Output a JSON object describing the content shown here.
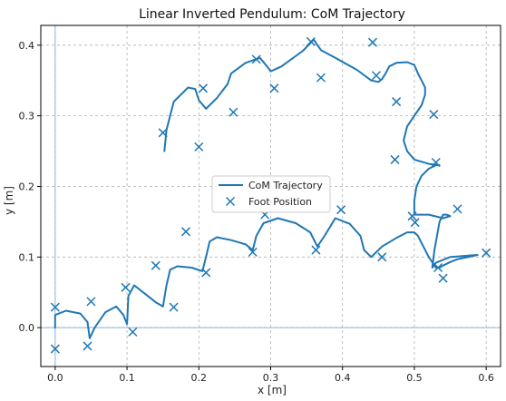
{
  "chart_data": {
    "type": "line",
    "title": "Linear Inverted Pendulum: CoM Trajectory",
    "xlabel": "x [m]",
    "ylabel": "y [m]",
    "xlim": [
      -0.02,
      0.62
    ],
    "ylim": [
      -0.055,
      0.428
    ],
    "xticks": [
      0.0,
      0.1,
      0.2,
      0.3,
      0.4,
      0.5,
      0.6
    ],
    "yticks": [
      0.0,
      0.1,
      0.2,
      0.3,
      0.4
    ],
    "tick_format_decimals": 1,
    "grid": true,
    "legend_position": "center",
    "reference_lines": {
      "x": 0.0,
      "y": 0.0
    },
    "colors": {
      "line": "#1f77b4",
      "marker": "#1f77b4",
      "grid": "#b0b0b0",
      "reference": "#8db6d8"
    },
    "series": [
      {
        "name": "CoM Trajectory",
        "kind": "line",
        "x": [
          0.0,
          0.0,
          0.015,
          0.035,
          0.045,
          0.048,
          0.055,
          0.07,
          0.085,
          0.095,
          0.1,
          0.102,
          0.11,
          0.125,
          0.14,
          0.15,
          0.155,
          0.16,
          0.17,
          0.19,
          0.205,
          0.21,
          0.215,
          0.225,
          0.245,
          0.265,
          0.275,
          0.28,
          0.29,
          0.31,
          0.335,
          0.355,
          0.365,
          0.375,
          0.39,
          0.41,
          0.425,
          0.43,
          0.44,
          0.455,
          0.475,
          0.49,
          0.5,
          0.505,
          0.51,
          0.52,
          0.53,
          0.535,
          0.54,
          0.55,
          0.56,
          0.575,
          0.588,
          0.588,
          0.55,
          0.53,
          0.525,
          0.528,
          0.535,
          0.54,
          0.545,
          0.55,
          0.54,
          0.52,
          0.5,
          0.5,
          0.503,
          0.51,
          0.52,
          0.53,
          0.535,
          0.535,
          0.52,
          0.5,
          0.49,
          0.485,
          0.49,
          0.5,
          0.51,
          0.515,
          0.515,
          0.51,
          0.505,
          0.5,
          0.49,
          0.475,
          0.465,
          0.46,
          0.455,
          0.45,
          0.44,
          0.42,
          0.39,
          0.37,
          0.365,
          0.36,
          0.345,
          0.315,
          0.3,
          0.295,
          0.285,
          0.265,
          0.245,
          0.24,
          0.225,
          0.21,
          0.2,
          0.195,
          0.185,
          0.165,
          0.155,
          0.152
        ],
        "y": [
          0.0,
          0.018,
          0.024,
          0.02,
          0.008,
          -0.015,
          0.0,
          0.022,
          0.03,
          0.018,
          0.005,
          0.045,
          0.06,
          0.048,
          0.036,
          0.03,
          0.06,
          0.082,
          0.087,
          0.085,
          0.08,
          0.1,
          0.122,
          0.128,
          0.124,
          0.118,
          0.11,
          0.13,
          0.148,
          0.155,
          0.148,
          0.135,
          0.115,
          0.13,
          0.155,
          0.147,
          0.13,
          0.11,
          0.1,
          0.115,
          0.127,
          0.135,
          0.135,
          0.13,
          0.12,
          0.1,
          0.085,
          0.085,
          0.088,
          0.093,
          0.097,
          0.1,
          0.103,
          0.103,
          0.1,
          0.092,
          0.085,
          0.11,
          0.15,
          0.16,
          0.16,
          0.158,
          0.155,
          0.16,
          0.16,
          0.18,
          0.2,
          0.215,
          0.225,
          0.23,
          0.23,
          0.23,
          0.232,
          0.238,
          0.25,
          0.265,
          0.285,
          0.3,
          0.315,
          0.33,
          0.34,
          0.35,
          0.36,
          0.372,
          0.376,
          0.375,
          0.37,
          0.36,
          0.352,
          0.348,
          0.35,
          0.365,
          0.382,
          0.393,
          0.4,
          0.408,
          0.392,
          0.37,
          0.363,
          0.37,
          0.382,
          0.375,
          0.36,
          0.345,
          0.325,
          0.31,
          0.322,
          0.338,
          0.34,
          0.32,
          0.28,
          0.25
        ]
      },
      {
        "name": "Foot Position",
        "kind": "scatter",
        "marker": "x",
        "x": [
          0.0,
          0.0,
          0.045,
          0.05,
          0.098,
          0.108,
          0.14,
          0.165,
          0.182,
          0.21,
          0.275,
          0.292,
          0.363,
          0.398,
          0.455,
          0.497,
          0.501,
          0.533,
          0.54,
          0.56,
          0.6,
          0.53,
          0.527,
          0.473,
          0.475,
          0.447,
          0.442,
          0.37,
          0.356,
          0.305,
          0.28,
          0.248,
          0.206,
          0.2,
          0.15
        ],
        "y": [
          -0.03,
          0.029,
          -0.026,
          0.037,
          0.057,
          -0.006,
          0.088,
          0.029,
          0.136,
          0.078,
          0.107,
          0.16,
          0.11,
          0.167,
          0.1,
          0.158,
          0.149,
          0.085,
          0.07,
          0.168,
          0.106,
          0.234,
          0.302,
          0.238,
          0.32,
          0.357,
          0.404,
          0.354,
          0.405,
          0.339,
          0.38,
          0.305,
          0.339,
          0.256,
          0.276
        ]
      }
    ]
  }
}
